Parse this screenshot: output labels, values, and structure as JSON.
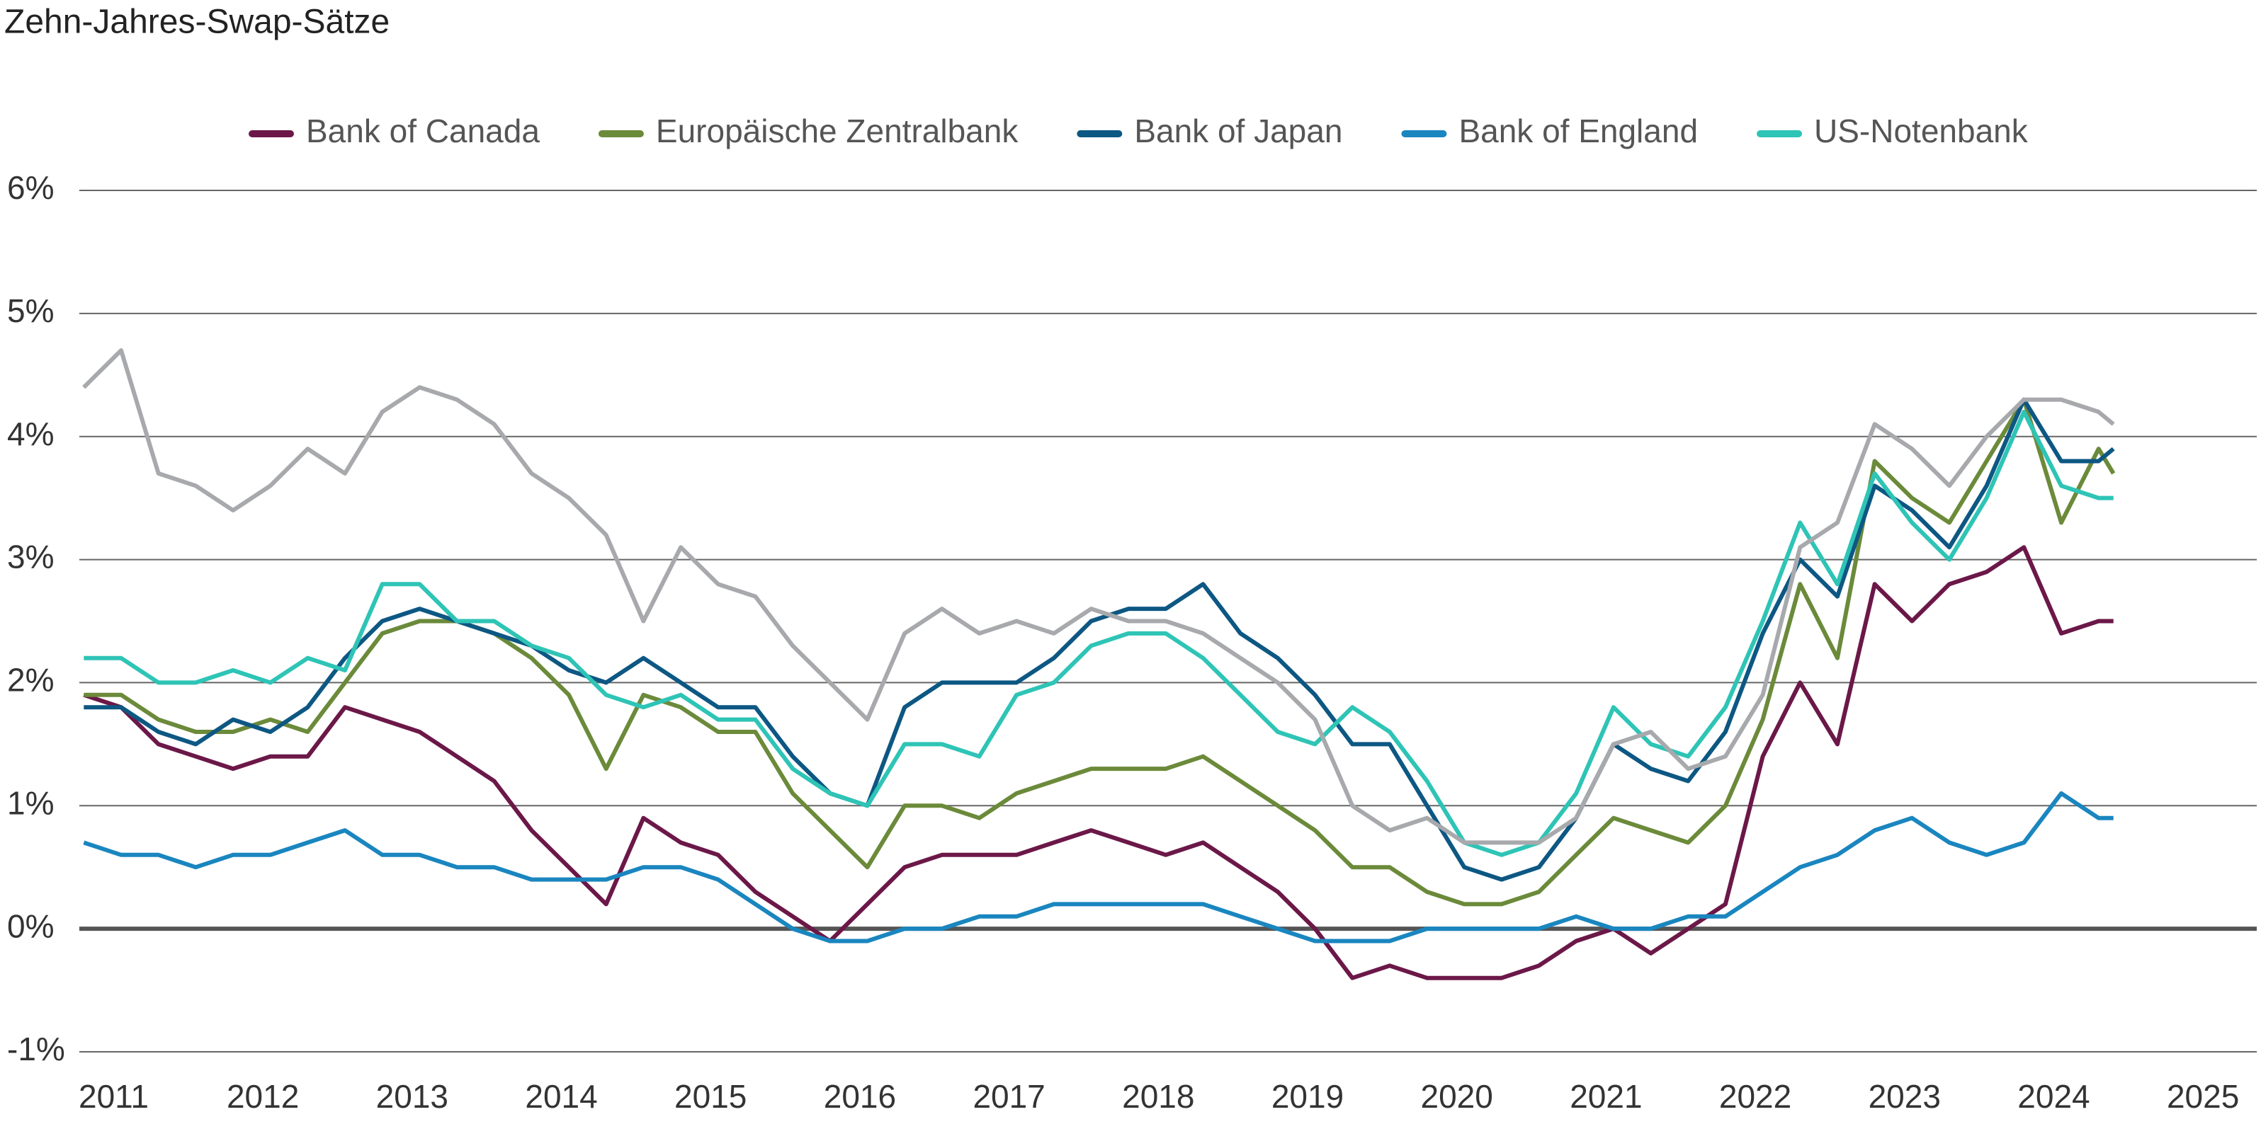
{
  "chart_data": {
    "type": "line",
    "title": "Zehn-Jahres-Swap-Sätze",
    "x": [
      2010.8,
      2011.05,
      2011.3,
      2011.55,
      2011.8,
      2012.05,
      2012.3,
      2012.55,
      2012.8,
      2013.05,
      2013.3,
      2013.55,
      2013.8,
      2014.05,
      2014.3,
      2014.55,
      2014.8,
      2015.05,
      2015.3,
      2015.55,
      2015.8,
      2016.05,
      2016.3,
      2016.55,
      2016.8,
      2017.05,
      2017.3,
      2017.55,
      2017.8,
      2018.05,
      2018.3,
      2018.55,
      2018.8,
      2019.05,
      2019.3,
      2019.55,
      2019.8,
      2020.05,
      2020.3,
      2020.55,
      2020.8,
      2021.05,
      2021.3,
      2021.55,
      2021.8,
      2022.05,
      2022.3,
      2022.55,
      2022.8,
      2023.05,
      2023.3,
      2023.55,
      2023.8,
      2024.05,
      2024.3,
      2024.4
    ],
    "series": [
      {
        "name": "Bank of Canada",
        "color": "#6b1848",
        "values": [
          1.9,
          1.8,
          1.5,
          1.4,
          1.3,
          1.4,
          1.4,
          1.8,
          1.7,
          1.6,
          1.4,
          1.2,
          0.8,
          0.5,
          0.2,
          0.9,
          0.7,
          0.6,
          0.3,
          0.1,
          -0.1,
          0.2,
          0.5,
          0.6,
          0.6,
          0.6,
          0.7,
          0.8,
          0.7,
          0.6,
          0.7,
          0.5,
          0.3,
          0.0,
          -0.4,
          -0.3,
          -0.4,
          -0.4,
          -0.4,
          -0.3,
          -0.1,
          0.0,
          -0.2,
          0.0,
          0.2,
          1.4,
          2.0,
          1.5,
          2.8,
          2.5,
          2.8,
          2.9,
          3.1,
          2.4,
          2.5,
          2.5
        ]
      },
      {
        "name": "Europäische Zentralbank",
        "color": "#6b8a3a",
        "values": [
          1.9,
          1.9,
          1.7,
          1.6,
          1.6,
          1.7,
          1.6,
          2.0,
          2.4,
          2.5,
          2.5,
          2.4,
          2.2,
          1.9,
          1.3,
          1.9,
          1.8,
          1.6,
          1.6,
          1.1,
          0.8,
          0.5,
          1.0,
          1.0,
          0.9,
          1.1,
          1.2,
          1.3,
          1.3,
          1.3,
          1.4,
          1.2,
          1.0,
          0.8,
          0.5,
          0.5,
          0.3,
          0.2,
          0.2,
          0.3,
          0.6,
          0.9,
          0.8,
          0.7,
          1.0,
          1.7,
          2.8,
          2.2,
          3.8,
          3.5,
          3.3,
          3.8,
          4.3,
          3.3,
          3.9,
          3.7
        ]
      },
      {
        "name": "Bank of Japan",
        "color": "#0d5783",
        "values": [
          1.8,
          1.8,
          1.6,
          1.5,
          1.7,
          1.6,
          1.8,
          2.2,
          2.5,
          2.6,
          2.5,
          2.4,
          2.3,
          2.1,
          2.0,
          2.2,
          2.0,
          1.8,
          1.8,
          1.4,
          1.1,
          1.0,
          1.8,
          2.0,
          2.0,
          2.0,
          2.2,
          2.5,
          2.6,
          2.6,
          2.8,
          2.4,
          2.2,
          1.9,
          1.5,
          1.5,
          1.0,
          0.5,
          0.4,
          0.5,
          0.9,
          1.5,
          1.3,
          1.2,
          1.6,
          2.4,
          3.0,
          2.7,
          3.6,
          3.4,
          3.1,
          3.6,
          4.3,
          3.8,
          3.8,
          3.9
        ]
      },
      {
        "name": "Bank of England",
        "color": "#1a86bf",
        "values": [
          0.7,
          0.6,
          0.6,
          0.5,
          0.6,
          0.6,
          0.7,
          0.8,
          0.6,
          0.6,
          0.5,
          0.5,
          0.4,
          0.4,
          0.4,
          0.5,
          0.5,
          0.4,
          0.2,
          0.0,
          -0.1,
          -0.1,
          0.0,
          0.0,
          0.1,
          0.1,
          0.2,
          0.2,
          0.2,
          0.2,
          0.2,
          0.1,
          0.0,
          -0.1,
          -0.1,
          -0.1,
          0.0,
          0.0,
          0.0,
          0.0,
          0.1,
          0.0,
          0.0,
          0.1,
          0.1,
          0.3,
          0.5,
          0.6,
          0.8,
          0.9,
          0.7,
          0.6,
          0.7,
          1.1,
          0.9,
          0.9
        ]
      },
      {
        "name": "US-Notenbank",
        "color": "#2ec4b6",
        "values": [
          2.2,
          2.2,
          2.0,
          2.0,
          2.1,
          2.0,
          2.2,
          2.1,
          2.8,
          2.8,
          2.5,
          2.5,
          2.3,
          2.2,
          1.9,
          1.8,
          1.9,
          1.7,
          1.7,
          1.3,
          1.1,
          1.0,
          1.5,
          1.5,
          1.4,
          1.9,
          2.0,
          2.3,
          2.4,
          2.4,
          2.2,
          1.9,
          1.6,
          1.5,
          1.8,
          1.6,
          1.2,
          0.7,
          0.6,
          0.7,
          1.1,
          1.8,
          1.5,
          1.4,
          1.8,
          2.5,
          3.3,
          2.8,
          3.7,
          3.3,
          3.0,
          3.5,
          4.2,
          3.6,
          3.5,
          3.5
        ]
      },
      {
        "color": "#a7a9ac",
        "values": [
          4.4,
          4.7,
          3.7,
          3.6,
          3.4,
          3.6,
          3.9,
          3.7,
          4.2,
          4.4,
          4.3,
          4.1,
          3.7,
          3.5,
          3.2,
          2.5,
          3.1,
          2.8,
          2.7,
          2.3,
          2.0,
          1.7,
          2.4,
          2.6,
          2.4,
          2.5,
          2.4,
          2.6,
          2.5,
          2.5,
          2.4,
          2.2,
          2.0,
          1.7,
          1.0,
          0.8,
          0.9,
          0.7,
          0.7,
          0.7,
          0.9,
          1.5,
          1.6,
          1.3,
          1.4,
          1.9,
          3.1,
          3.3,
          4.1,
          3.9,
          3.6,
          4.0,
          4.3,
          4.3,
          4.2,
          4.1
        ]
      }
    ],
    "xlim": [
      2010.77,
      2025.36
    ],
    "xticks": [
      2011,
      2012,
      2013,
      2014,
      2015,
      2016,
      2017,
      2018,
      2019,
      2020,
      2021,
      2022,
      2023,
      2024,
      2025
    ],
    "ylim": [
      -1,
      6
    ],
    "yticks": [
      {
        "value": -1,
        "label": "-1%"
      },
      {
        "value": 0,
        "label": "0%"
      },
      {
        "value": 1,
        "label": "1%"
      },
      {
        "value": 2,
        "label": "2%"
      },
      {
        "value": 3,
        "label": "3%"
      },
      {
        "value": 4,
        "label": "4%"
      },
      {
        "value": 5,
        "label": "5%"
      },
      {
        "value": 6,
        "label": "6%"
      }
    ],
    "grid": true,
    "legend": "top"
  }
}
